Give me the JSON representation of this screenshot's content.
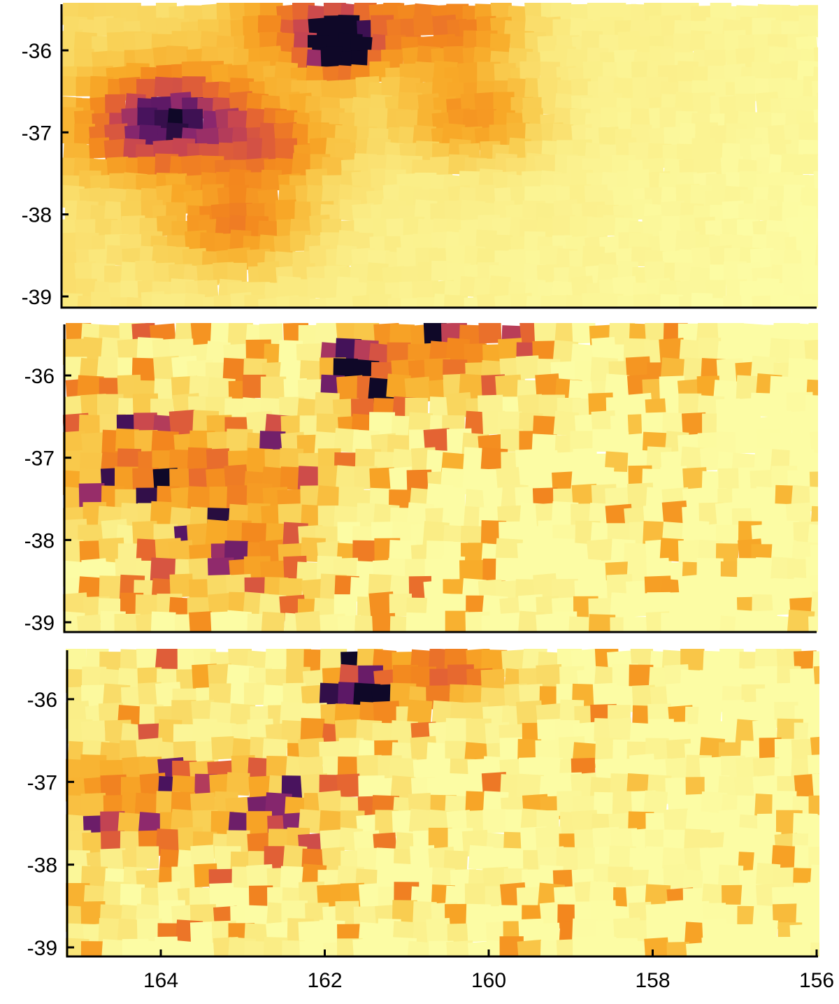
{
  "chart_data": [
    {
      "type": "heatmap",
      "panel": "top",
      "map_style": "smooth",
      "ylim": [
        -39.1,
        -35.45
      ],
      "y_ticks": [
        -36,
        -37,
        -38,
        -39
      ],
      "y_tick_labels": [
        "-36",
        "-37",
        "-38",
        "-39"
      ],
      "xlim": [
        165.15,
        155.95
      ],
      "x_ticks": [],
      "x_tick_labels": [],
      "colormap": "inferno (reversed, light yellow = low, dark purple = high)",
      "hotspots": [
        {
          "x": 161.8,
          "y": -35.95,
          "intensity": 1.0
        },
        {
          "x": 162.1,
          "y": -35.7,
          "intensity": 0.55
        },
        {
          "x": 160.5,
          "y": -35.7,
          "intensity": 0.45
        },
        {
          "x": 164.2,
          "y": -37.0,
          "intensity": 0.5
        },
        {
          "x": 162.7,
          "y": -37.1,
          "intensity": 0.45
        },
        {
          "x": 163.1,
          "y": -38.1,
          "intensity": 0.42
        },
        {
          "x": 160.2,
          "y": -36.8,
          "intensity": 0.4
        },
        {
          "x": 163.8,
          "y": -36.6,
          "intensity": 0.4
        }
      ]
    },
    {
      "type": "heatmap",
      "panel": "middle",
      "map_style": "patchy",
      "ylim": [
        -39.1,
        -35.45
      ],
      "y_ticks": [
        -36,
        -37,
        -38,
        -39
      ],
      "y_tick_labels": [
        "-36",
        "-37",
        "-38",
        "-39"
      ],
      "xlim": [
        165.15,
        155.95
      ],
      "x_ticks": [],
      "x_tick_labels": [],
      "colormap": "inferno (reversed, light yellow = low, dark purple = high)",
      "hotspots": [
        {
          "x": 161.6,
          "y": -35.9,
          "intensity": 1.0
        },
        {
          "x": 160.5,
          "y": -35.6,
          "intensity": 0.65
        },
        {
          "x": 164.3,
          "y": -37.1,
          "intensity": 0.5
        },
        {
          "x": 162.8,
          "y": -37.2,
          "intensity": 0.45
        },
        {
          "x": 163.0,
          "y": -38.2,
          "intensity": 0.4
        }
      ]
    },
    {
      "type": "heatmap",
      "panel": "bottom",
      "map_style": "patchy",
      "ylim": [
        -39.1,
        -35.45
      ],
      "y_ticks": [
        -36,
        -37,
        -38,
        -39
      ],
      "y_tick_labels": [
        "-36",
        "-37",
        "-38",
        "-39"
      ],
      "xlim": [
        165.15,
        155.95
      ],
      "x_ticks": [
        164,
        162,
        160,
        158,
        156
      ],
      "x_tick_labels": [
        "164",
        "162",
        "160",
        "158",
        "156"
      ],
      "colormap": "inferno (reversed, light yellow = low, dark purple = high)",
      "hotspots": [
        {
          "x": 161.6,
          "y": -35.9,
          "intensity": 1.0
        },
        {
          "x": 160.6,
          "y": -35.6,
          "intensity": 0.6
        },
        {
          "x": 164.4,
          "y": -37.2,
          "intensity": 0.4
        },
        {
          "x": 162.6,
          "y": -37.3,
          "intensity": 0.35
        }
      ]
    }
  ]
}
